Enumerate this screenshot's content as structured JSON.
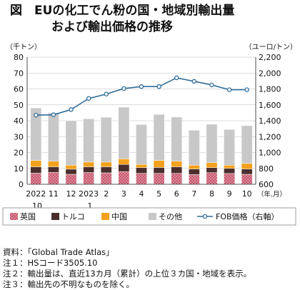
{
  "title": {
    "line1": "図　EUの化工でん粉の国・地域別輸出量",
    "line2": "および輸出価格の推移"
  },
  "chart_data": {
    "type": "bar",
    "stacked": true,
    "left_unit": "（千トン）",
    "right_unit": "（ユーロ/トン）",
    "x_unit": "（年.月）",
    "categories": [
      "2022\n.10",
      "11",
      "12",
      "2023\n.1",
      "2",
      "3",
      "4",
      "5",
      "6",
      "7",
      "8",
      "9",
      "10"
    ],
    "ylim": [
      0,
      80
    ],
    "yticks": [
      0,
      10,
      20,
      30,
      40,
      50,
      60,
      70,
      80
    ],
    "y2lim": [
      600,
      2200
    ],
    "y2ticks": [
      600,
      800,
      1000,
      1200,
      1400,
      1600,
      1800,
      2000,
      2200
    ],
    "series": [
      {
        "name": "英国",
        "color": "#c9586f",
        "pattern": "dots",
        "values": [
          7.0,
          7.5,
          6.3,
          7.4,
          7.2,
          8.0,
          6.9,
          6.9,
          6.9,
          6.1,
          7.3,
          6.8,
          6.3
        ]
      },
      {
        "name": "トルコ",
        "color": "#4a2e2e",
        "pattern": "none",
        "values": [
          4.0,
          3.5,
          3.2,
          3.6,
          3.8,
          4.5,
          3.6,
          3.7,
          4.1,
          3.5,
          3.2,
          3.2,
          3.3
        ]
      },
      {
        "name": "中国",
        "color": "#f3a11d",
        "pattern": "none",
        "values": [
          4.0,
          3.5,
          2.5,
          3.0,
          3.0,
          3.5,
          2.0,
          4.4,
          3.5,
          2.4,
          3.1,
          2.0,
          3.5
        ]
      },
      {
        "name": "その他",
        "color": "#c8c8c8",
        "pattern": "none",
        "values": [
          33.0,
          30.5,
          28.0,
          27.2,
          28.2,
          32.5,
          25.1,
          29.0,
          27.8,
          22.0,
          24.2,
          22.5,
          23.8
        ]
      }
    ],
    "line_series": {
      "name": "FOB価格（右軸）",
      "axis": "right",
      "color": "#2f6d9a",
      "values": [
        1470,
        1475,
        1540,
        1680,
        1735,
        1805,
        1830,
        1830,
        1940,
        1895,
        1850,
        1790,
        1790
      ]
    },
    "legend_position": "bottom"
  },
  "notes": [
    "資料：「Global Trade Atlas」",
    "注１：HSコード3505.10",
    "注２：輸出量は、直近13カ月（累計）の上位３カ国・地域を表示。",
    "注３：輸出先の不明なものを除く。"
  ]
}
